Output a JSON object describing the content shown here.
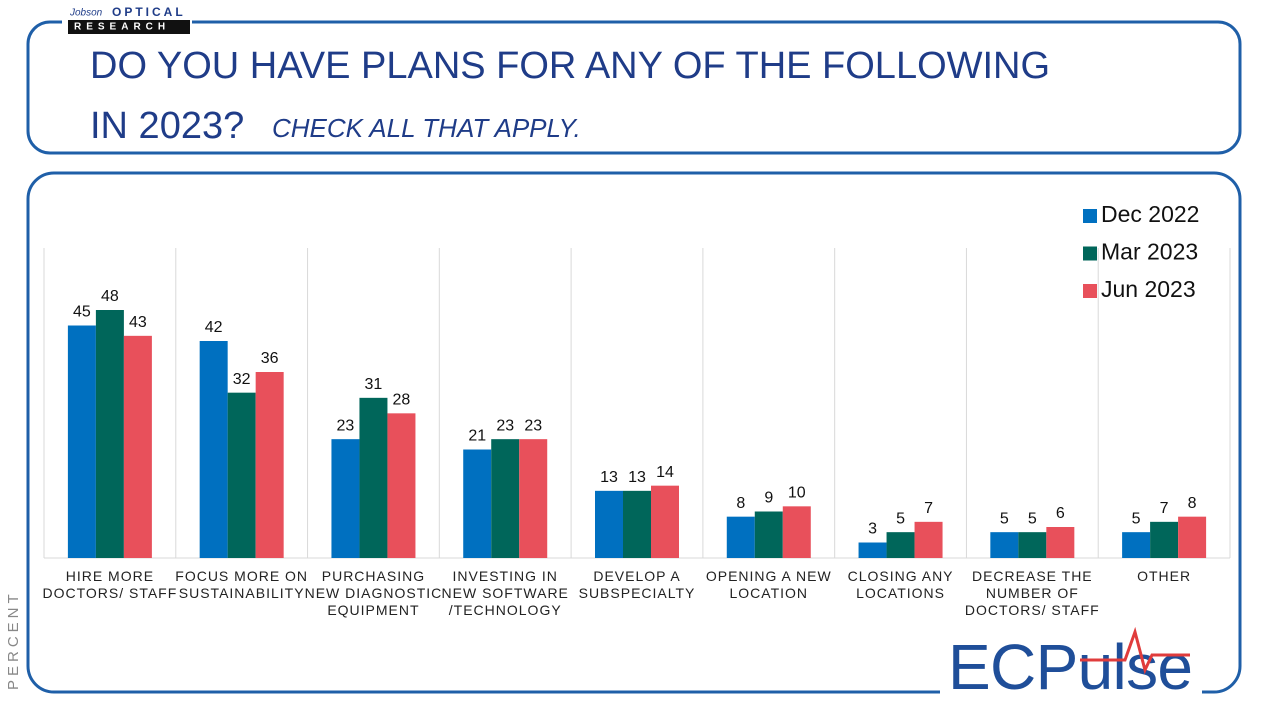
{
  "header": {
    "logo_brand": "Jobson",
    "logo_name": "OPTICAL",
    "logo_sub": "RESEARCH"
  },
  "footer_logo": "ECPulse",
  "chart_data": {
    "type": "bar",
    "title": "DO YOU HAVE PLANS FOR ANY OF THE FOLLOWING",
    "title_line2": "IN 2023?",
    "subtitle": "CHECK ALL THAT APPLY.",
    "y_label": "PERCENT",
    "categories": [
      "HIRE MORE\nDOCTORS/ STAFF",
      "FOCUS MORE ON\nSUSTAINABILITY",
      "PURCHASING\nNEW DIAGNOSTIC\nEQUIPMENT",
      "INVESTING IN\nNEW SOFTWARE\n/TECHNOLOGY",
      "DEVELOP A\nSUBSPECIALTY",
      "OPENING A NEW\nLOCATION",
      "CLOSING ANY\nLOCATIONS",
      "DECREASE THE\nNUMBER OF\nDOCTORS/ STAFF",
      "OTHER"
    ],
    "series": [
      {
        "name": "Dec 2022",
        "color": "#0070c0",
        "values": [
          45,
          42,
          23,
          21,
          13,
          8,
          3,
          5,
          5
        ]
      },
      {
        "name": "Mar 2023",
        "color": "#00665a",
        "values": [
          48,
          32,
          31,
          23,
          13,
          9,
          5,
          5,
          7
        ]
      },
      {
        "name": "Jun 2023",
        "color": "#e8505b",
        "values": [
          43,
          36,
          28,
          23,
          14,
          10,
          7,
          6,
          8
        ]
      }
    ],
    "ylim": [
      0,
      60
    ],
    "grid": true,
    "legend": "top-right"
  }
}
